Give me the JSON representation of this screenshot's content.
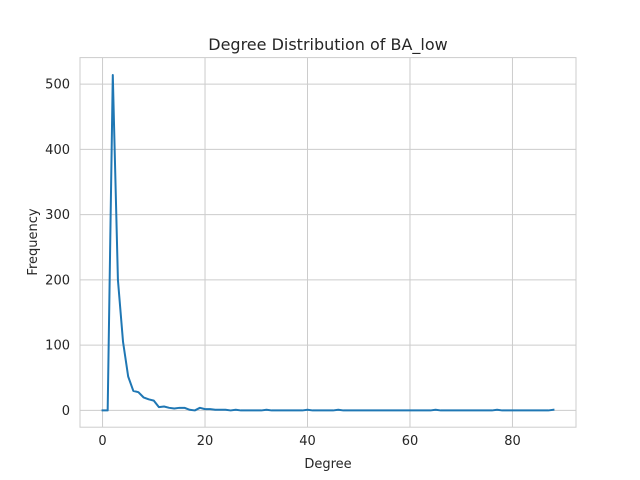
{
  "chart_data": {
    "type": "line",
    "title": "Degree Distribution of BA_low",
    "xlabel": "Degree",
    "ylabel": "Frequency",
    "xlim": [
      -4.4,
      92.4
    ],
    "ylim": [
      -25.7,
      540.7
    ],
    "xticks": [
      0,
      20,
      40,
      60,
      80
    ],
    "yticks": [
      0,
      100,
      200,
      300,
      400,
      500
    ],
    "grid": true,
    "line_color": "#1f77b4",
    "series": [
      {
        "name": "",
        "x": [
          0,
          1,
          2,
          3,
          4,
          5,
          6,
          7,
          8,
          9,
          10,
          11,
          12,
          13,
          14,
          15,
          16,
          17,
          18,
          19,
          20,
          21,
          22,
          23,
          24,
          25,
          26,
          27,
          28,
          29,
          30,
          31,
          32,
          33,
          34,
          35,
          36,
          37,
          38,
          39,
          40,
          41,
          42,
          43,
          44,
          45,
          46,
          47,
          48,
          49,
          50,
          51,
          52,
          53,
          54,
          55,
          56,
          57,
          58,
          59,
          60,
          61,
          62,
          63,
          64,
          65,
          66,
          67,
          68,
          69,
          70,
          71,
          72,
          73,
          74,
          75,
          76,
          77,
          78,
          79,
          80,
          81,
          82,
          83,
          84,
          85,
          86,
          87,
          88
        ],
        "values": [
          0,
          0,
          514,
          200,
          105,
          52,
          30,
          28,
          20,
          17,
          15,
          5,
          6,
          4,
          3,
          4,
          4,
          1,
          0,
          4,
          2,
          2,
          1,
          1,
          1,
          0,
          1,
          0,
          0,
          0,
          0,
          0,
          1,
          0,
          0,
          0,
          0,
          0,
          0,
          0,
          1,
          0,
          0,
          0,
          0,
          0,
          1,
          0,
          0,
          0,
          0,
          0,
          0,
          0,
          0,
          0,
          0,
          0,
          0,
          0,
          0,
          0,
          0,
          0,
          0,
          1,
          0,
          0,
          0,
          0,
          0,
          0,
          0,
          0,
          0,
          0,
          0,
          1,
          0,
          0,
          0,
          0,
          0,
          0,
          0,
          0,
          0,
          0,
          1
        ]
      }
    ]
  }
}
